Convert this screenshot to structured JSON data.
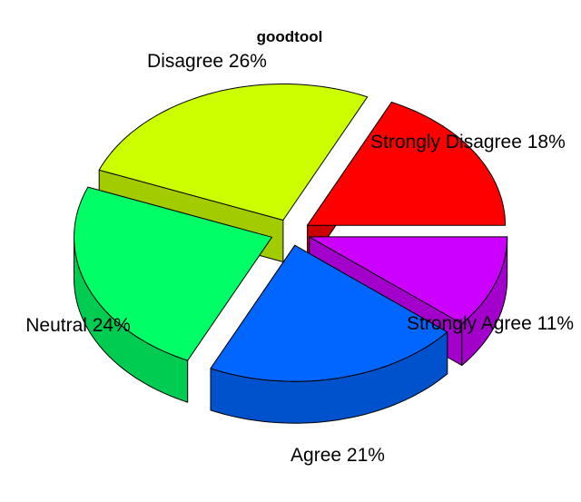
{
  "chart_data": {
    "type": "pie",
    "title": "goodtool",
    "three_d": true,
    "exploded": true,
    "slices": [
      {
        "label": "Strongly Disagree 18%",
        "category": "Strongly Disagree",
        "value": 18,
        "color": "#ff0000",
        "side_color": "#cc0000"
      },
      {
        "label": "Disagree 26%",
        "category": "Disagree",
        "value": 26,
        "color": "#ccff00",
        "side_color": "#a3cc00"
      },
      {
        "label": "Neutral 24%",
        "category": "Neutral",
        "value": 24,
        "color": "#00ff66",
        "side_color": "#00cc52"
      },
      {
        "label": "Agree 21%",
        "category": "Agree",
        "value": 21,
        "color": "#0066ff",
        "side_color": "#0052cc"
      },
      {
        "label": "Strongly Agree 11%",
        "category": "Strongly Agree",
        "value": 11,
        "color": "#cc00ff",
        "side_color": "#a300cc"
      }
    ]
  }
}
